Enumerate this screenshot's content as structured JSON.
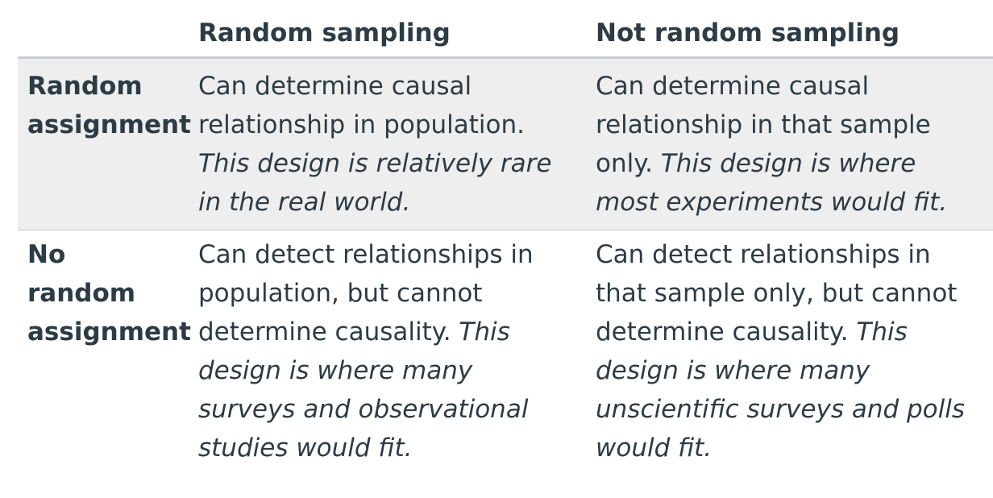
{
  "table": {
    "header": {
      "corner": "",
      "col1": "Random sampling",
      "col2": "Not random sampling"
    },
    "rows": [
      {
        "label": "Random assignment",
        "cells": [
          {
            "text": "Can determine causal relationship in population.",
            "note": "This design is relatively rare in the real world."
          },
          {
            "text": "Can determine causal relationship in that sample only.",
            "note": "This design is where most experiments would fit."
          }
        ]
      },
      {
        "label": "No random assignment",
        "cells": [
          {
            "text": "Can detect relationships in population, but cannot determine causality.",
            "note": "This design is where many surveys and observational studies would fit."
          },
          {
            "text": "Can detect relationships in that sample only, but cannot determine causality.",
            "note": "This design is where many unscientific surveys and polls would fit."
          }
        ]
      }
    ]
  }
}
